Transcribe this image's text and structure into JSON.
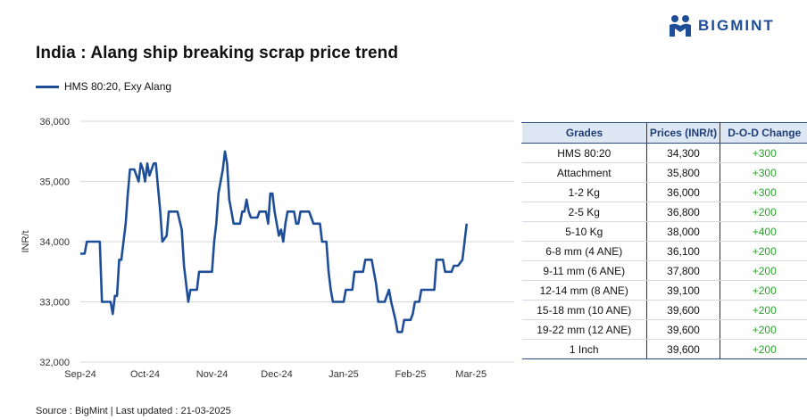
{
  "title": "India : Alang ship breaking scrap price trend",
  "logo_text": "BIGMINT",
  "source": "Source : BigMint | Last updated : 21-03-2025",
  "colors": {
    "series": "#1f4e99",
    "change_positive": "#2ca02c",
    "header_bg": "#dde6f3"
  },
  "chart_data": {
    "type": "line",
    "title": "India : Alang ship breaking scrap price trend",
    "ylabel": "INR/t",
    "xlabel": "",
    "ylim": [
      32000,
      36000
    ],
    "yticks": [
      32000,
      33000,
      34000,
      35000,
      36000
    ],
    "ytick_labels": [
      "32,000",
      "33,000",
      "34,000",
      "35,000",
      "36,000"
    ],
    "xticks": [
      {
        "label": "Sep-24",
        "x": 0
      },
      {
        "label": "Oct-24",
        "x": 30
      },
      {
        "label": "Nov-24",
        "x": 61
      },
      {
        "label": "Dec-24",
        "x": 91
      },
      {
        "label": "Jan-25",
        "x": 122
      },
      {
        "label": "Feb-25",
        "x": 153
      },
      {
        "label": "Mar-25",
        "x": 181
      }
    ],
    "xmax": 201,
    "grid": "horizontal",
    "legend": "top-left",
    "series": [
      {
        "name": "HMS 80:20, Exy Alang",
        "points": [
          [
            0,
            33800
          ],
          [
            2,
            33800
          ],
          [
            3,
            34000
          ],
          [
            9,
            34000
          ],
          [
            10,
            33000
          ],
          [
            14,
            33000
          ],
          [
            15,
            32800
          ],
          [
            16,
            33100
          ],
          [
            17,
            33100
          ],
          [
            18,
            33700
          ],
          [
            19,
            33700
          ],
          [
            21,
            34300
          ],
          [
            22,
            34800
          ],
          [
            23,
            35200
          ],
          [
            25,
            35200
          ],
          [
            26,
            35100
          ],
          [
            27,
            35000
          ],
          [
            28,
            35300
          ],
          [
            29,
            35200
          ],
          [
            30,
            35000
          ],
          [
            31,
            35300
          ],
          [
            32,
            35100
          ],
          [
            33,
            35200
          ],
          [
            34,
            35300
          ],
          [
            35,
            35300
          ],
          [
            37,
            34500
          ],
          [
            38,
            34000
          ],
          [
            40,
            34100
          ],
          [
            41,
            34500
          ],
          [
            45,
            34500
          ],
          [
            47,
            34200
          ],
          [
            48,
            33600
          ],
          [
            49,
            33300
          ],
          [
            50,
            33000
          ],
          [
            51,
            33200
          ],
          [
            54,
            33200
          ],
          [
            55,
            33500
          ],
          [
            61,
            33500
          ],
          [
            62,
            34000
          ],
          [
            63,
            34300
          ],
          [
            64,
            34800
          ],
          [
            66,
            35200
          ],
          [
            67,
            35500
          ],
          [
            68,
            35300
          ],
          [
            69,
            34700
          ],
          [
            70,
            34500
          ],
          [
            71,
            34300
          ],
          [
            74,
            34300
          ],
          [
            75,
            34500
          ],
          [
            76,
            34500
          ],
          [
            77,
            34700
          ],
          [
            78,
            34500
          ],
          [
            79,
            34400
          ],
          [
            82,
            34400
          ],
          [
            83,
            34500
          ],
          [
            86,
            34500
          ],
          [
            87,
            34300
          ],
          [
            88,
            34800
          ],
          [
            89,
            34800
          ],
          [
            90,
            34500
          ],
          [
            91,
            34300
          ],
          [
            92,
            34100
          ],
          [
            93,
            34200
          ],
          [
            94,
            34000
          ],
          [
            95,
            34300
          ],
          [
            96,
            34500
          ],
          [
            99,
            34500
          ],
          [
            100,
            34300
          ],
          [
            101,
            34300
          ],
          [
            102,
            34500
          ],
          [
            106,
            34500
          ],
          [
            107,
            34400
          ],
          [
            108,
            34300
          ],
          [
            111,
            34300
          ],
          [
            112,
            34000
          ],
          [
            114,
            34000
          ],
          [
            115,
            33500
          ],
          [
            116,
            33200
          ],
          [
            117,
            33000
          ],
          [
            122,
            33000
          ],
          [
            123,
            33200
          ],
          [
            126,
            33200
          ],
          [
            127,
            33500
          ],
          [
            131,
            33500
          ],
          [
            132,
            33700
          ],
          [
            135,
            33700
          ],
          [
            136,
            33500
          ],
          [
            137,
            33300
          ],
          [
            138,
            33000
          ],
          [
            141,
            33000
          ],
          [
            143,
            33200
          ],
          [
            144,
            33000
          ],
          [
            146,
            32700
          ],
          [
            147,
            32500
          ],
          [
            149,
            32500
          ],
          [
            150,
            32700
          ],
          [
            153,
            32700
          ],
          [
            154,
            32800
          ],
          [
            155,
            33000
          ],
          [
            157,
            33000
          ],
          [
            158,
            33200
          ],
          [
            164,
            33200
          ],
          [
            165,
            33700
          ],
          [
            168,
            33700
          ],
          [
            169,
            33500
          ],
          [
            172,
            33500
          ],
          [
            173,
            33600
          ],
          [
            175,
            33600
          ],
          [
            177,
            33700
          ],
          [
            178,
            34000
          ],
          [
            179,
            34300
          ]
        ]
      }
    ]
  },
  "table": {
    "headers": [
      "Grades",
      "Prices (INR/t)",
      "D-O-D Change"
    ],
    "rows": [
      [
        "HMS 80:20",
        "34,300",
        "+300"
      ],
      [
        "Attachment",
        "35,800",
        "+300"
      ],
      [
        "1-2 Kg",
        "36,000",
        "+300"
      ],
      [
        "2-5 Kg",
        "36,800",
        "+200"
      ],
      [
        "5-10 Kg",
        "38,000",
        "+400"
      ],
      [
        "6-8 mm (4 ANE)",
        "36,100",
        "+200"
      ],
      [
        "9-11 mm (6 ANE)",
        "37,800",
        "+200"
      ],
      [
        "12-14 mm (8 ANE)",
        "39,100",
        "+200"
      ],
      [
        "15-18 mm (10 ANE)",
        "39,600",
        "+200"
      ],
      [
        "19-22 mm (12 ANE)",
        "39,600",
        "+200"
      ],
      [
        "1 Inch",
        "39,600",
        "+200"
      ]
    ]
  }
}
